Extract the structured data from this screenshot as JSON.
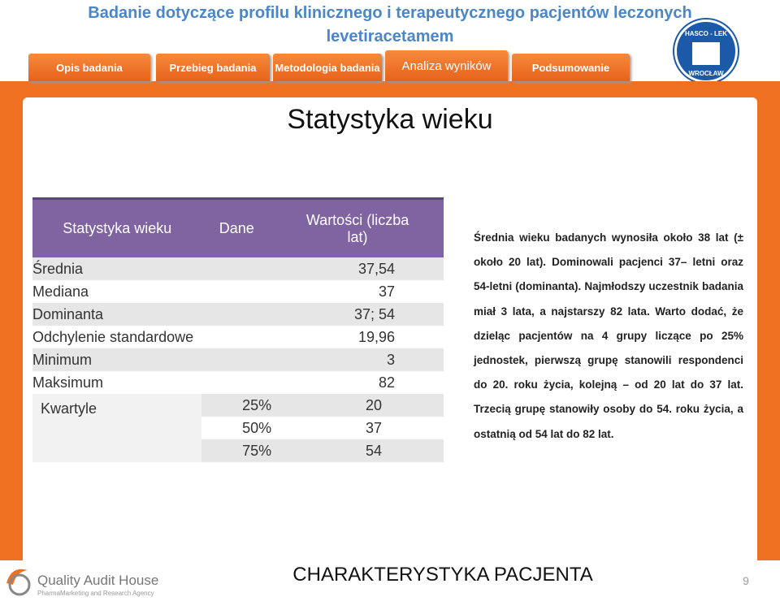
{
  "header": {
    "title": "Badanie dotyczące profilu klinicznego i terapeutycznego pacjentów leczonych levetiracetamem",
    "logo": {
      "top": "HASCO - LEK",
      "bottom": "WROCŁAW"
    }
  },
  "tabs": [
    "Opis badania",
    "Przebieg badania",
    "Metodologia badania",
    "Analiza wyników",
    "Podsumowanie"
  ],
  "slide_title": "Statystyka wieku",
  "table": {
    "headers": [
      "Statystyka wieku",
      "Dane",
      "Wartości (liczba lat)"
    ],
    "rows": [
      [
        "Średnia",
        "37,54"
      ],
      [
        "Mediana",
        "37"
      ],
      [
        "Dominanta",
        "37; 54"
      ],
      [
        "Odchylenie standardowe",
        "19,96"
      ],
      [
        "Minimum",
        "3"
      ],
      [
        "Maksimum",
        "82"
      ]
    ],
    "quartiles": {
      "label": "Kwartyle",
      "rows": [
        [
          "25%",
          "20"
        ],
        [
          "50%",
          "37"
        ],
        [
          "75%",
          "54"
        ]
      ]
    }
  },
  "paragraph": "Średnia wieku badanych wynosiła około 38 lat (± około 20 lat). Dominowali pacjenci 37– letni oraz 54-letni (dominanta). Najmłodszy uczestnik badania miał 3 lata, a najstarszy 82 lata. Warto dodać, że dzieląc pacjentów na 4 grupy liczące po 25% jednostek, pierwszą grupę stanowili respondenci do 20. roku życia, kolejną – od 20 lat do 37 lat. Trzecią grupę stanowiły osoby do 54. roku życia, a ostatnią od 54 lat do 82 lat.",
  "footer": {
    "brand": "Quality Audit House",
    "tagline": "PharmaMarketing and Research Agency",
    "section": "CHARAKTERYSTYKA PACJENTA",
    "page": "9"
  }
}
